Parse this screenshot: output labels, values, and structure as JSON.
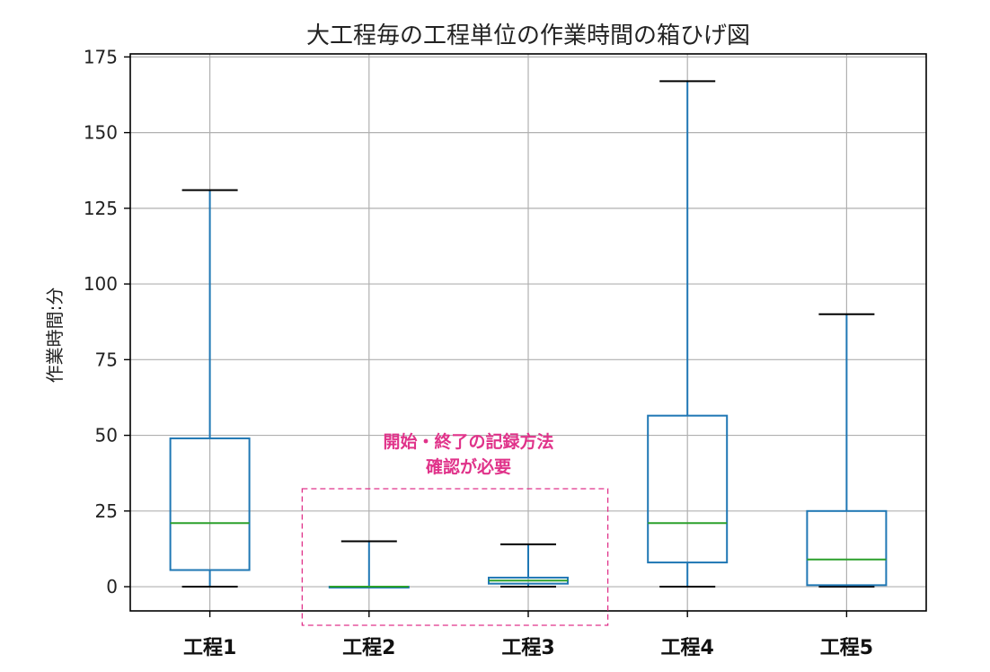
{
  "chart_data": {
    "type": "box",
    "title": "大工程毎の工程単位の作業時間の箱ひげ図",
    "xlabel": "",
    "ylabel": "作業時間:分",
    "ylim": [
      -8,
      176
    ],
    "yticks": [
      0,
      25,
      50,
      75,
      100,
      125,
      150,
      175
    ],
    "grid": true,
    "categories": [
      "工程1",
      "工程2",
      "工程3",
      "工程4",
      "工程5"
    ],
    "boxes": [
      {
        "min": 0,
        "q1": 5.5,
        "median": 21,
        "q3": 49,
        "max": 131
      },
      {
        "min": 0,
        "q1": 0,
        "median": 0,
        "q3": 0,
        "max": 15
      },
      {
        "min": 0,
        "q1": 1,
        "median": 2,
        "q3": 3,
        "max": 14
      },
      {
        "min": 0,
        "q1": 8,
        "median": 21,
        "q3": 56.5,
        "max": 167
      },
      {
        "min": 0,
        "q1": 0.5,
        "median": 9,
        "q3": 25,
        "max": 90
      }
    ],
    "annotation": {
      "lines": [
        "開始・終了の記録方法",
        "確認が必要"
      ],
      "color": "#e0338a",
      "highlight_categories": [
        "工程2",
        "工程3"
      ]
    },
    "colors": {
      "box": "#1f77b4",
      "median": "#2ca02c",
      "cap": "#000000",
      "grid": "#b0b0b0"
    }
  }
}
